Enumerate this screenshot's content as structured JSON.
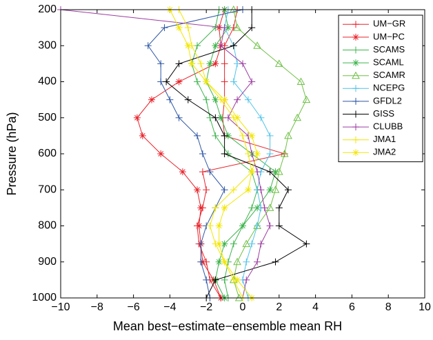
{
  "chart_data": {
    "type": "line",
    "xlabel": "Mean best−estimate−ensemble mean RH",
    "ylabel": "Pressure (hPa)",
    "y": [
      200,
      250,
      300,
      350,
      400,
      450,
      500,
      550,
      600,
      650,
      700,
      750,
      800,
      850,
      900,
      950,
      1000
    ],
    "xlim": [
      -10,
      10
    ],
    "xticks": [
      {
        "value": -10,
        "label": "−10"
      },
      {
        "value": -8,
        "label": "−8"
      },
      {
        "value": -6,
        "label": "−6"
      },
      {
        "value": -4,
        "label": "−4"
      },
      {
        "value": -2,
        "label": "−2"
      },
      0,
      2,
      4,
      6,
      8,
      10
    ],
    "ylim": [
      1000,
      200
    ],
    "yticks": [
      200,
      300,
      400,
      500,
      600,
      700,
      800,
      900,
      1000
    ],
    "legend": "upper right",
    "series": [
      {
        "name": "UM−GR",
        "color": "#e8222a",
        "marker": "plus",
        "values": [
          -0.3,
          -0.5,
          -1.0,
          -1.0,
          -1.0,
          -1.0,
          -1.1,
          -1.0,
          2.3,
          -2.2,
          -2.0,
          -2.2,
          -2.5,
          -2.4,
          -2.0,
          -1.8,
          -1.2
        ]
      },
      {
        "name": "UM−PC",
        "color": "#e8222a",
        "marker": "star",
        "values": [
          -1.0,
          -1.3,
          -1.2,
          -1.5,
          -3.5,
          -5.0,
          -5.8,
          -5.5,
          -4.5,
          -3.3,
          -2.5,
          -2.3,
          -2.4,
          -2.3,
          -2.2,
          -1.6,
          -1.2
        ]
      },
      {
        "name": "SCAMS",
        "color": "#3cb44b",
        "marker": "plus",
        "values": [
          -1.3,
          -1.5,
          -2.5,
          -2.8,
          -2.5,
          -2.0,
          -1.8,
          -1.5,
          -0.8,
          0.5,
          0.8,
          0.5,
          0.0,
          -0.5,
          -0.8,
          -1.0,
          -0.8
        ]
      },
      {
        "name": "SCAML",
        "color": "#3cb44b",
        "marker": "star",
        "values": [
          -1.0,
          -0.8,
          -1.5,
          -1.8,
          -2.0,
          -1.5,
          -1.2,
          -0.8,
          0.5,
          1.8,
          1.5,
          0.8,
          0.0,
          -1.0,
          -1.3,
          -1.5,
          -1.0
        ]
      },
      {
        "name": "SCAMR",
        "color": "#6ec044",
        "marker": "triangle",
        "values": [
          -0.5,
          -0.3,
          0.8,
          2.0,
          3.2,
          3.5,
          3.0,
          2.5,
          2.3,
          2.0,
          1.8,
          1.5,
          0.8,
          0.2,
          -0.3,
          -0.5,
          -0.2
        ]
      },
      {
        "name": "NCEPG",
        "color": "#4fc3e8",
        "marker": "plus",
        "values": [
          -0.8,
          -1.0,
          -0.5,
          -0.3,
          -0.5,
          0.3,
          1.0,
          1.5,
          1.5,
          1.0,
          0.8,
          1.0,
          0.8,
          0.5,
          0.2,
          0.0,
          0.3
        ]
      },
      {
        "name": "GFDL2",
        "color": "#2d55a5",
        "marker": "plus",
        "values": [
          0.0,
          -4.3,
          -5.2,
          -4.5,
          -4.5,
          -4.0,
          -3.5,
          -2.5,
          -2.2,
          -1.8,
          -1.0,
          -1.5,
          -2.0,
          -2.3,
          -2.3,
          -2.0,
          -1.8
        ]
      },
      {
        "name": "GISS",
        "color": "#000000",
        "marker": "plus",
        "values": [
          0.5,
          0.5,
          -0.5,
          -3.5,
          -4.2,
          -3.0,
          -1.5,
          -1.0,
          -1.0,
          1.5,
          2.5,
          2.0,
          2.0,
          3.5,
          1.8,
          -1.5,
          -2.0
        ]
      },
      {
        "name": "CLUBB",
        "color": "#9b3ba0",
        "marker": "plus",
        "values": [
          -10,
          -1.0,
          -1.2,
          0.0,
          0.5,
          -0.3,
          -0.8,
          0.3,
          0.5,
          0.8,
          1.0,
          1.2,
          1.5,
          1.0,
          0.8,
          0.2,
          0.0
        ]
      },
      {
        "name": "JMA1",
        "color": "#f2e600",
        "marker": "plus",
        "values": [
          -3.5,
          -3.0,
          -2.8,
          -2.3,
          -2.0,
          -1.2,
          -0.5,
          0.0,
          0.3,
          0.5,
          -0.5,
          -1.5,
          -1.8,
          -1.5,
          -1.0,
          -0.5,
          0.0
        ]
      },
      {
        "name": "JMA2",
        "color": "#f2e600",
        "marker": "star",
        "values": [
          -4.0,
          -3.5,
          -3.0,
          -2.8,
          -2.0,
          -1.0,
          -0.3,
          0.5,
          0.8,
          0.5,
          0.3,
          -1.0,
          -1.3,
          -1.3,
          -1.0,
          -0.3,
          0.5
        ]
      }
    ]
  }
}
